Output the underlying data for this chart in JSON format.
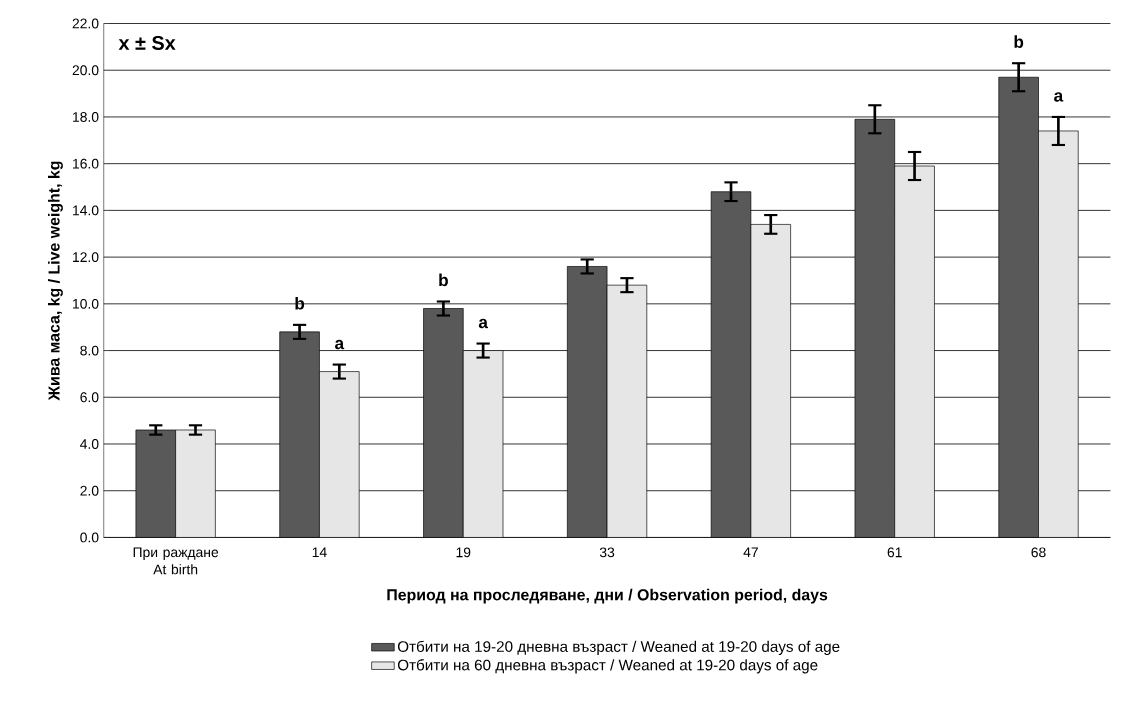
{
  "chart_data": {
    "type": "bar",
    "xlabel": "Период на проследяване, дни / Observation period, days",
    "ylabel": "Жива маса, kg / Live weight, kg",
    "categories": [
      "При раждане At birth",
      "14",
      "19",
      "33",
      "47",
      "61",
      "68"
    ],
    "series": [
      {
        "name": "Отбити на 19-20 дневна възраст / Weaned at 19-20 days of age",
        "color": "#595959",
        "values": [
          4.6,
          8.8,
          9.8,
          11.6,
          14.8,
          17.9,
          19.7
        ],
        "errors": [
          0.2,
          0.3,
          0.3,
          0.3,
          0.4,
          0.6,
          0.6
        ]
      },
      {
        "name": "Отбити на 60 дневна възраст / Weaned at 19-20 days of age",
        "color": "#e6e6e6",
        "values": [
          4.6,
          7.1,
          8.0,
          10.8,
          13.4,
          15.9,
          17.4
        ],
        "errors": [
          0.2,
          0.3,
          0.3,
          0.3,
          0.4,
          0.6,
          0.6
        ]
      }
    ],
    "ylim": [
      0,
      22
    ],
    "yticks": [
      {
        "value": 0,
        "label": "0.0"
      },
      {
        "value": 2,
        "label": "2.0"
      },
      {
        "value": 4,
        "label": "4.0"
      },
      {
        "value": 6,
        "label": "6.0"
      },
      {
        "value": 8,
        "label": "8.0"
      },
      {
        "value": 10,
        "label": "10.0"
      },
      {
        "value": 12,
        "label": "12.0"
      },
      {
        "value": 14,
        "label": "14.0"
      },
      {
        "value": 16,
        "label": "16.0"
      },
      {
        "value": 18,
        "label": "18.0"
      },
      {
        "value": 20,
        "label": "20.0"
      },
      {
        "value": 22,
        "label": "22.0"
      }
    ],
    "grid": "y",
    "legend": "bottom",
    "annotations": [
      "x ± Sx",
      {
        "text": "b",
        "x": "14",
        "y": 8.8
      },
      {
        "text": "a",
        "x": "14",
        "y": 7.1
      },
      {
        "text": "b",
        "x": "19",
        "y": 9.8
      },
      {
        "text": "a",
        "x": "19",
        "y": 8.0
      },
      {
        "text": "b",
        "x": "68",
        "y": 19.7
      },
      {
        "text": "a",
        "x": "68",
        "y": 17.4
      }
    ]
  }
}
